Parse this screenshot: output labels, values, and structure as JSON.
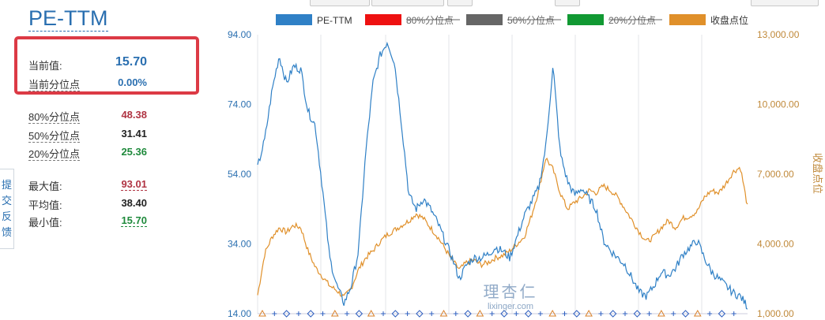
{
  "title": "PE-TTM",
  "feedback": [
    "提",
    "交",
    "反",
    "馈"
  ],
  "stats": {
    "current_value": {
      "label": "当前值:",
      "value": "15.70"
    },
    "current_percentile": {
      "label": "当前分位点",
      "value": "0.00%"
    },
    "p80": {
      "label": "80%分位点",
      "value": "48.38"
    },
    "p50": {
      "label": "50%分位点",
      "value": "31.41"
    },
    "p20": {
      "label": "20%分位点",
      "value": "25.36"
    },
    "max": {
      "label": "最大值:",
      "value": "93.01"
    },
    "avg": {
      "label": "平均值:",
      "value": "38.40"
    },
    "min": {
      "label": "最小值:",
      "value": "15.70"
    }
  },
  "watermark": {
    "line1": "理杏仁",
    "line2": "lixinger.com"
  },
  "colors": {
    "pe": "#2f80c6",
    "p80": "#ee1111",
    "p50": "#666666",
    "p20": "#119933",
    "close": "#e0902a",
    "highlight": "#dc3a45"
  },
  "chart_data": {
    "type": "line",
    "legend_position": "top",
    "grid": {
      "vertical": true,
      "horizontal": false
    },
    "y_left": {
      "ticks": [
        "94.00",
        "74.00",
        "54.00",
        "34.00",
        "14.00"
      ],
      "range": [
        14,
        94
      ]
    },
    "y_right": {
      "label": "收盘点位",
      "ticks": [
        "13,000.00",
        "10,000.00",
        "7,000.00",
        "4,000.00",
        "1,000.00"
      ],
      "range": [
        1000,
        13000
      ]
    },
    "series": [
      {
        "name": "PE-TTM",
        "axis": "left",
        "enabled": true,
        "values": [
          56,
          64,
          78,
          88,
          80,
          85,
          84,
          72,
          68,
          50,
          30,
          22,
          17,
          22,
          32,
          60,
          80,
          88,
          92,
          86,
          68,
          48,
          44,
          47,
          44,
          40,
          35,
          30,
          24,
          28,
          30,
          30,
          31,
          33,
          32,
          30,
          36,
          42,
          46,
          50,
          62,
          85,
          60,
          52,
          48,
          50,
          47,
          44,
          35,
          32,
          30,
          28,
          24,
          20,
          19,
          22,
          26,
          25,
          27,
          31,
          33,
          35,
          30,
          26,
          24,
          22,
          20,
          19,
          16
        ]
      },
      {
        "name": "80%分位点",
        "axis": "left",
        "enabled": false,
        "values": []
      },
      {
        "name": "50%分位点",
        "axis": "left",
        "enabled": false,
        "values": []
      },
      {
        "name": "20%分位点",
        "axis": "left",
        "enabled": false,
        "values": []
      },
      {
        "name": "收盘点位",
        "axis": "right",
        "enabled": true,
        "values": [
          1800,
          3600,
          4300,
          4700,
          4500,
          4800,
          4700,
          3700,
          3000,
          2600,
          2200,
          2000,
          1700,
          2100,
          2900,
          3400,
          3700,
          4100,
          4400,
          4600,
          4800,
          5000,
          5300,
          5100,
          4700,
          4300,
          3800,
          3300,
          2900,
          3200,
          3300,
          3100,
          3200,
          3400,
          3500,
          3700,
          4000,
          4300,
          5200,
          6300,
          7700,
          7200,
          6200,
          5500,
          5800,
          6000,
          6300,
          6200,
          6500,
          6300,
          6000,
          5500,
          5000,
          4500,
          4100,
          4300,
          4700,
          5000,
          4700,
          5100,
          5200,
          5400,
          6000,
          6300,
          6200,
          6600,
          7100,
          7300,
          5600
        ]
      }
    ]
  }
}
